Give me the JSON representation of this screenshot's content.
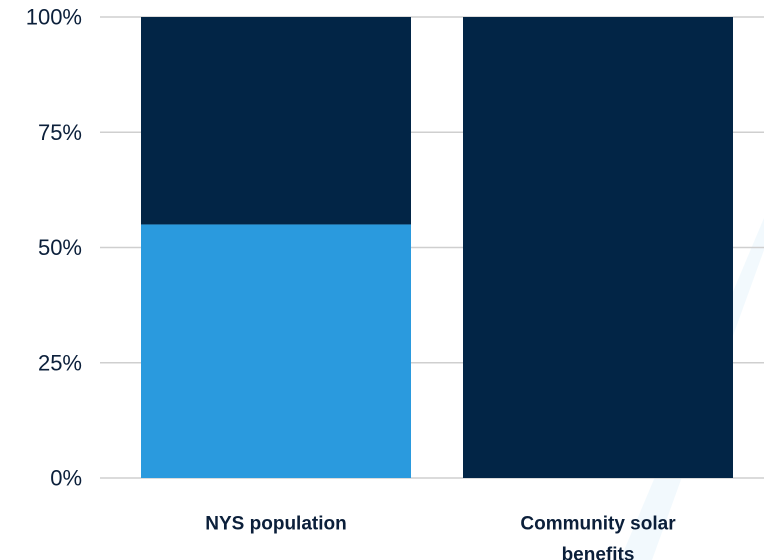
{
  "chart_data": {
    "type": "bar",
    "stacked": true,
    "categories": [
      {
        "lines": [
          "NYS population"
        ]
      },
      {
        "lines": [
          "Community solar",
          "benefits"
        ]
      }
    ],
    "series": [
      {
        "values": [
          55,
          0
        ],
        "color": "#2a9ade"
      },
      {
        "values": [
          45,
          100
        ],
        "color": "#022546"
      }
    ],
    "yticks": [
      "0%",
      "25%",
      "50%",
      "75%",
      "100%"
    ],
    "ytick_values": [
      0,
      25,
      50,
      75,
      100
    ],
    "ylim": [
      0,
      100
    ],
    "grid": true,
    "title": "",
    "xlabel": "",
    "ylabel": ""
  },
  "decoration": {
    "accent_color": "#2a9ade"
  }
}
